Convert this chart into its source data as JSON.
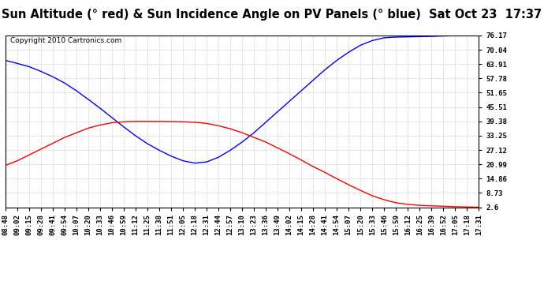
{
  "title": "Sun Altitude (° red) & Sun Incidence Angle on PV Panels (° blue)  Sat Oct 23  17:37",
  "copyright": "Copyright 2010 Cartronics.com",
  "yticks": [
    2.6,
    8.73,
    14.86,
    20.99,
    27.12,
    33.25,
    39.38,
    45.51,
    51.65,
    57.78,
    63.91,
    70.04,
    76.17
  ],
  "xtick_labels": [
    "08:48",
    "09:02",
    "09:15",
    "09:28",
    "09:41",
    "09:54",
    "10:07",
    "10:20",
    "10:33",
    "10:46",
    "10:59",
    "11:12",
    "11:25",
    "11:38",
    "11:51",
    "12:05",
    "12:18",
    "12:31",
    "12:44",
    "12:57",
    "13:10",
    "13:23",
    "13:36",
    "13:49",
    "14:02",
    "14:15",
    "14:28",
    "14:41",
    "14:54",
    "15:07",
    "15:20",
    "15:33",
    "15:46",
    "15:59",
    "16:12",
    "16:25",
    "16:39",
    "16:52",
    "17:05",
    "17:18",
    "17:31"
  ],
  "blue_y": [
    65.5,
    64.2,
    62.8,
    60.8,
    58.5,
    55.8,
    52.5,
    48.8,
    45.0,
    41.0,
    37.0,
    33.2,
    29.8,
    27.0,
    24.5,
    22.5,
    21.5,
    22.0,
    24.0,
    27.0,
    30.5,
    34.5,
    39.0,
    43.5,
    48.0,
    52.5,
    57.0,
    61.5,
    65.5,
    69.0,
    72.0,
    74.0,
    75.2,
    75.5,
    75.6,
    75.7,
    75.8,
    76.0,
    76.1,
    76.15,
    76.17
  ],
  "red_y": [
    20.5,
    22.5,
    25.0,
    27.5,
    30.0,
    32.5,
    34.5,
    36.5,
    37.8,
    38.8,
    39.2,
    39.4,
    39.38,
    39.35,
    39.3,
    39.2,
    39.0,
    38.5,
    37.5,
    36.2,
    34.5,
    32.5,
    30.5,
    28.0,
    25.5,
    22.8,
    20.0,
    17.5,
    14.8,
    12.2,
    9.8,
    7.5,
    5.8,
    4.5,
    3.8,
    3.4,
    3.2,
    3.0,
    2.8,
    2.7,
    2.6
  ],
  "blue_color": "blue",
  "red_color": "red",
  "bg_color": "#ffffff",
  "plot_bg_color": "#ffffff",
  "grid_color": "#bbbbbb",
  "title_fontsize": 10.5,
  "tick_fontsize": 6.5,
  "copyright_fontsize": 6.5,
  "ymin": 2.6,
  "ymax": 76.17
}
